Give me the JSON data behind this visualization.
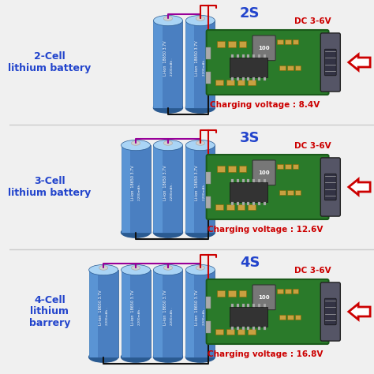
{
  "background_color": "#f0f0f0",
  "rows": [
    {
      "label": "2-Cell\nlithium battery",
      "series": "2S",
      "num_cells": 2,
      "cv_text": "Charging voltage : 8.4V"
    },
    {
      "label": "3-Cell\nlithium battery",
      "series": "3S",
      "num_cells": 3,
      "cv_text": "Charging voltage : 12.6V"
    },
    {
      "label": "4-Cell\nlithium\nbarrery",
      "series": "4S",
      "num_cells": 4,
      "cv_text": "Charging voltage : 16.8V"
    }
  ],
  "battery_body_color": "#4a7fc1",
  "battery_highlight": "#6aaae8",
  "battery_dark": "#2a5a91",
  "battery_top_color": "#aad4f5",
  "battery_terminal_color": "#d0d0d0",
  "pcb_color": "#2a7a2a",
  "pcb_dark": "#1a5a1a",
  "pcb_light": "#3aaa3a",
  "wire_red": "#cc0000",
  "wire_black": "#111111",
  "wire_purple": "#990099",
  "label_color": "#2244cc",
  "charging_color": "#cc0000",
  "dc_label_color": "#cc0000",
  "series_label_color": "#2244cc",
  "arrow_color": "#cc0000",
  "arrow_outline": "#cc0000",
  "divider_color": "#cccccc",
  "component_tan": "#c8a040",
  "component_dark_tan": "#886600",
  "ic_color": "#333333",
  "inductor_color": "#777777",
  "usb_color": "#555566",
  "usb_inner": "#333344"
}
